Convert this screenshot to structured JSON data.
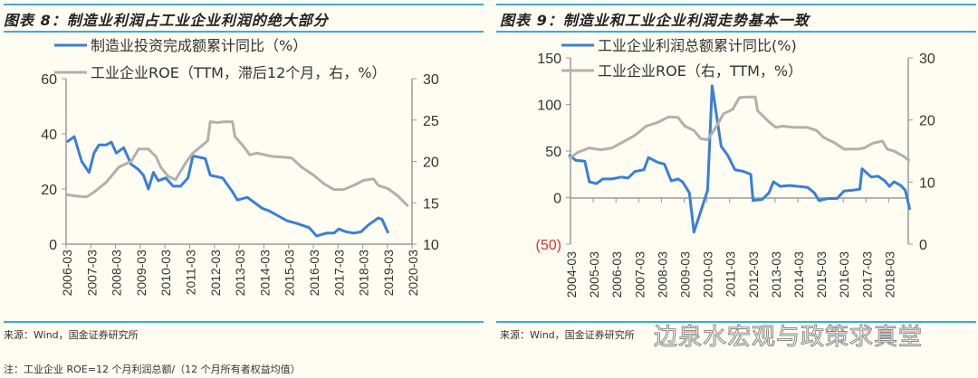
{
  "panels": [
    {
      "title": "图表 8：制造业利润占工业企业利润的绝大部分",
      "source": "来源：Wind，国金证券研究所"
    },
    {
      "title": "图表 9：制造业和工业企业利润走势基本一致",
      "source": "来源：Wind，国金证券研究所"
    }
  ],
  "note": "注：工业企业 ROE=12 个月利润总额/（12 个月所有者权益均值）",
  "watermark": "边泉水宏观与政策求真堂",
  "colors": {
    "blue": "#3a7fd5",
    "gray": "#b0b0b0",
    "negative": "#e03030"
  },
  "chart_data": [
    {
      "type": "line",
      "title": "图表 8：制造业利润占工业企业利润的绝大部分",
      "x_ticks": [
        "2006-03",
        "2007-03",
        "2008-03",
        "2009-03",
        "2010-03",
        "2011-03",
        "2012-03",
        "2013-03",
        "2014-03",
        "2015-03",
        "2016-03",
        "2017-03",
        "2018-03",
        "2019-03",
        "2020-03"
      ],
      "y_left": {
        "range": [
          0,
          60
        ],
        "ticks": [
          "0",
          "20",
          "40",
          "60"
        ]
      },
      "y_right": {
        "range": [
          10,
          30
        ],
        "ticks": [
          "10",
          "15",
          "20",
          "25",
          "30"
        ]
      },
      "series": [
        {
          "name": "制造业投资完成额累计同比（%）",
          "axis": "left",
          "color": "#3a7fd5",
          "points": [
            [
              2006.2,
              37
            ],
            [
              2006.5,
              39
            ],
            [
              2006.8,
              30
            ],
            [
              2007.1,
              26
            ],
            [
              2007.3,
              33
            ],
            [
              2007.5,
              36
            ],
            [
              2007.8,
              36
            ],
            [
              2008.0,
              37
            ],
            [
              2008.2,
              33
            ],
            [
              2008.5,
              35
            ],
            [
              2008.8,
              29
            ],
            [
              2009.1,
              27
            ],
            [
              2009.3,
              25
            ],
            [
              2009.5,
              20
            ],
            [
              2009.7,
              26
            ],
            [
              2009.9,
              23
            ],
            [
              2010.2,
              24
            ],
            [
              2010.5,
              21
            ],
            [
              2010.8,
              21
            ],
            [
              2011.1,
              24
            ],
            [
              2011.3,
              32
            ],
            [
              2011.8,
              31
            ],
            [
              2012.0,
              25
            ],
            [
              2012.5,
              24
            ],
            [
              2012.9,
              19
            ],
            [
              2013.1,
              16
            ],
            [
              2013.5,
              17
            ],
            [
              2013.8,
              15
            ],
            [
              2014.1,
              13
            ],
            [
              2014.4,
              12
            ],
            [
              2014.8,
              10
            ],
            [
              2015.1,
              8.5
            ],
            [
              2015.5,
              7.5
            ],
            [
              2016.0,
              6
            ],
            [
              2016.3,
              3
            ],
            [
              2016.7,
              4
            ],
            [
              2017.0,
              4
            ],
            [
              2017.2,
              5.5
            ],
            [
              2017.5,
              4.5
            ],
            [
              2017.8,
              4
            ],
            [
              2018.1,
              4.5
            ],
            [
              2018.4,
              7
            ],
            [
              2018.8,
              9.5
            ],
            [
              2018.95,
              9
            ],
            [
              2019.2,
              4
            ]
          ]
        },
        {
          "name": "工业企业ROE（TTM，滞后12个月，右，%）",
          "axis": "right",
          "color": "#b0b0b0",
          "points": [
            [
              2006.2,
              16
            ],
            [
              2006.6,
              15.8
            ],
            [
              2007.0,
              15.7
            ],
            [
              2007.3,
              16.3
            ],
            [
              2007.8,
              17.5
            ],
            [
              2008.3,
              19.3
            ],
            [
              2008.8,
              20
            ],
            [
              2009.1,
              21.5
            ],
            [
              2009.5,
              21.5
            ],
            [
              2009.8,
              20.6
            ],
            [
              2010.0,
              19.3
            ],
            [
              2010.3,
              18.2
            ],
            [
              2010.6,
              17.8
            ],
            [
              2011.0,
              19.8
            ],
            [
              2011.3,
              21
            ],
            [
              2011.7,
              22
            ],
            [
              2011.9,
              22.5
            ],
            [
              2012.0,
              24.8
            ],
            [
              2012.3,
              24.7
            ],
            [
              2012.6,
              24.8
            ],
            [
              2012.9,
              24.8
            ],
            [
              2013.0,
              23
            ],
            [
              2013.3,
              22
            ],
            [
              2013.6,
              20.8
            ],
            [
              2013.9,
              21
            ],
            [
              2014.5,
              20.6
            ],
            [
              2015.0,
              20.5
            ],
            [
              2015.3,
              20.4
            ],
            [
              2015.7,
              19.3
            ],
            [
              2016.2,
              18.3
            ],
            [
              2016.6,
              17.3
            ],
            [
              2017.0,
              16.6
            ],
            [
              2017.4,
              16.6
            ],
            [
              2017.8,
              17.1
            ],
            [
              2018.2,
              17.7
            ],
            [
              2018.6,
              17.9
            ],
            [
              2018.8,
              17.1
            ],
            [
              2019.2,
              16.7
            ],
            [
              2019.6,
              15.8
            ],
            [
              2020.0,
              14.6
            ]
          ]
        }
      ]
    },
    {
      "type": "line",
      "title": "图表 9：制造业和工业企业利润走势基本一致",
      "x_ticks": [
        "2004-03",
        "2005-03",
        "2006-03",
        "2007-03",
        "2008-03",
        "2009-03",
        "2010-03",
        "2011-03",
        "2012-03",
        "2013-03",
        "2014-03",
        "2015-03",
        "2016-03",
        "2017-03",
        "2018-03"
      ],
      "y_left": {
        "range": [
          -50,
          150
        ],
        "ticks": [
          "(50)",
          "0",
          "50",
          "100",
          "150"
        ]
      },
      "y_right": {
        "range": [
          0,
          30
        ],
        "ticks": [
          "0",
          "10",
          "20",
          "30"
        ]
      },
      "series": [
        {
          "name": "工业企业利润总额累计同比(%)",
          "axis": "left",
          "color": "#3a7fd5",
          "points": [
            [
              2004.1,
              46
            ],
            [
              2004.4,
              40
            ],
            [
              2004.8,
              39
            ],
            [
              2005.0,
              17
            ],
            [
              2005.3,
              15
            ],
            [
              2005.6,
              20
            ],
            [
              2006.0,
              20
            ],
            [
              2006.4,
              22
            ],
            [
              2006.7,
              21
            ],
            [
              2007.0,
              28
            ],
            [
              2007.4,
              30
            ],
            [
              2007.6,
              43
            ],
            [
              2008.0,
              38
            ],
            [
              2008.3,
              36
            ],
            [
              2008.6,
              18
            ],
            [
              2008.9,
              20
            ],
            [
              2009.1,
              17
            ],
            [
              2009.4,
              5
            ],
            [
              2009.6,
              -37
            ],
            [
              2009.9,
              -15
            ],
            [
              2010.2,
              8
            ],
            [
              2010.4,
              120
            ],
            [
              2010.8,
              55
            ],
            [
              2011.1,
              45
            ],
            [
              2011.4,
              30
            ],
            [
              2011.8,
              28
            ],
            [
              2012.1,
              25
            ],
            [
              2012.2,
              -3
            ],
            [
              2012.6,
              -2
            ],
            [
              2012.9,
              5
            ],
            [
              2013.1,
              17
            ],
            [
              2013.4,
              12
            ],
            [
              2013.8,
              13
            ],
            [
              2014.2,
              12
            ],
            [
              2014.6,
              11
            ],
            [
              2014.9,
              5
            ],
            [
              2015.1,
              -3
            ],
            [
              2015.5,
              -1
            ],
            [
              2015.9,
              -1
            ],
            [
              2016.2,
              7
            ],
            [
              2016.6,
              8
            ],
            [
              2016.9,
              9
            ],
            [
              2017.0,
              31
            ],
            [
              2017.4,
              22
            ],
            [
              2017.7,
              23
            ],
            [
              2018.0,
              18
            ],
            [
              2018.2,
              12
            ],
            [
              2018.4,
              17
            ],
            [
              2018.7,
              13
            ],
            [
              2018.9,
              8
            ],
            [
              2019.1,
              -13
            ]
          ]
        },
        {
          "name": "工业企业ROE（右，TTM，%）",
          "axis": "right",
          "color": "#b0b0b0",
          "points": [
            [
              2004.1,
              13.8
            ],
            [
              2004.5,
              14.8
            ],
            [
              2005.0,
              15.5
            ],
            [
              2005.5,
              15.2
            ],
            [
              2006.0,
              15.5
            ],
            [
              2006.5,
              16.5
            ],
            [
              2007.0,
              17.5
            ],
            [
              2007.5,
              19
            ],
            [
              2008.0,
              19.6
            ],
            [
              2008.5,
              20.5
            ],
            [
              2008.9,
              20.4
            ],
            [
              2009.2,
              19
            ],
            [
              2009.6,
              18.3
            ],
            [
              2009.9,
              17
            ],
            [
              2010.2,
              16.8
            ],
            [
              2010.6,
              19
            ],
            [
              2010.9,
              21
            ],
            [
              2011.3,
              21.7
            ],
            [
              2011.6,
              23.6
            ],
            [
              2012.0,
              23.7
            ],
            [
              2012.3,
              23.7
            ],
            [
              2012.4,
              21.5
            ],
            [
              2012.9,
              19.7
            ],
            [
              2013.2,
              18.8
            ],
            [
              2013.5,
              19
            ],
            [
              2014.0,
              18.8
            ],
            [
              2014.6,
              18.8
            ],
            [
              2015.0,
              18.3
            ],
            [
              2015.3,
              17.2
            ],
            [
              2015.8,
              16.3
            ],
            [
              2016.2,
              15.3
            ],
            [
              2016.8,
              15.3
            ],
            [
              2017.1,
              15.5
            ],
            [
              2017.5,
              16.3
            ],
            [
              2017.9,
              16.6
            ],
            [
              2018.1,
              15.3
            ],
            [
              2018.4,
              15
            ],
            [
              2018.8,
              14.2
            ],
            [
              2019.1,
              13.4
            ]
          ]
        }
      ]
    }
  ]
}
